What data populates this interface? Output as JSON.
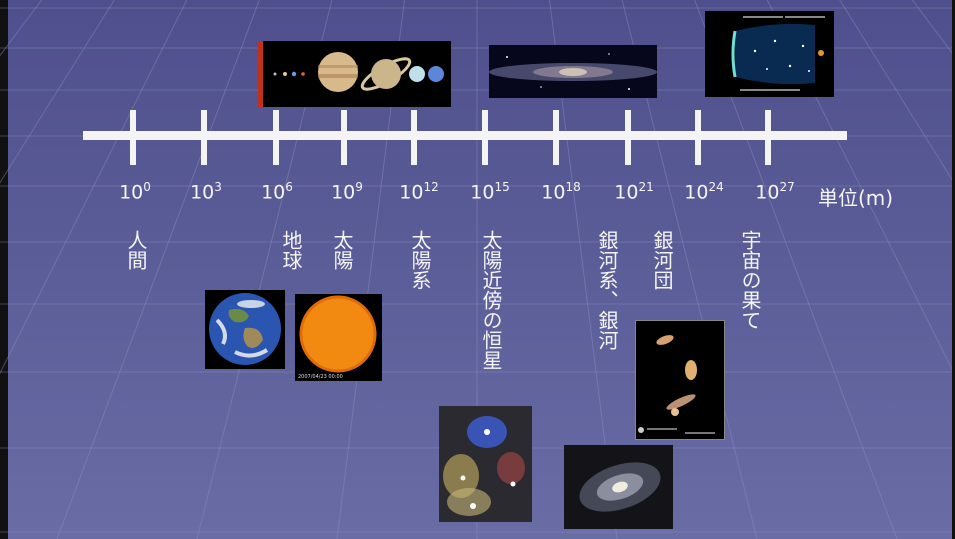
{
  "axis": {
    "ticks": [
      {
        "base": "10",
        "exp": "0"
      },
      {
        "base": "10",
        "exp": "3"
      },
      {
        "base": "10",
        "exp": "6"
      },
      {
        "base": "10",
        "exp": "9"
      },
      {
        "base": "10",
        "exp": "12"
      },
      {
        "base": "10",
        "exp": "15"
      },
      {
        "base": "10",
        "exp": "18"
      },
      {
        "base": "10",
        "exp": "21"
      },
      {
        "base": "10",
        "exp": "24"
      },
      {
        "base": "10",
        "exp": "27"
      }
    ],
    "unit": "単位(m)"
  },
  "labels": {
    "human": "人間",
    "earth": "地球",
    "sun": "太陽",
    "solar_system": "太陽系",
    "nearby_stars": "太陽近傍の恒星",
    "galaxy": "銀河系、銀河",
    "galaxy_cluster": "銀河団",
    "universe_edge": "宇宙の果て"
  },
  "images": {
    "sun_timestamp": "2007/04/23 00:00",
    "colors": {
      "earth_ocean": "#2a55b0",
      "sun": "#f28a12",
      "jupiter": "#d8b98c",
      "saturn": "#cbb58a",
      "nebula_blue": "#3c5ccc",
      "space": "#05050f"
    }
  }
}
